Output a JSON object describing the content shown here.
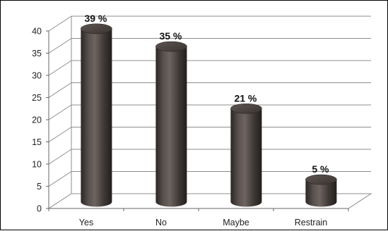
{
  "chart_data": {
    "type": "bar",
    "style": "3d-cylinder",
    "categories": [
      "Yes",
      "No",
      "Maybe",
      "Restrain"
    ],
    "values": [
      39,
      35,
      21,
      5
    ],
    "data_labels": [
      "39 %",
      "35 %",
      "21 %",
      "5 %"
    ],
    "ylim": [
      0,
      40
    ],
    "yticks": [
      0,
      5,
      10,
      15,
      20,
      25,
      30,
      35,
      40
    ],
    "ytick_labels": [
      "0",
      "5",
      "10",
      "15",
      "20",
      "25",
      "30",
      "35",
      "40"
    ],
    "grid": true,
    "legend": "none",
    "bar_color": "#4a4441"
  }
}
